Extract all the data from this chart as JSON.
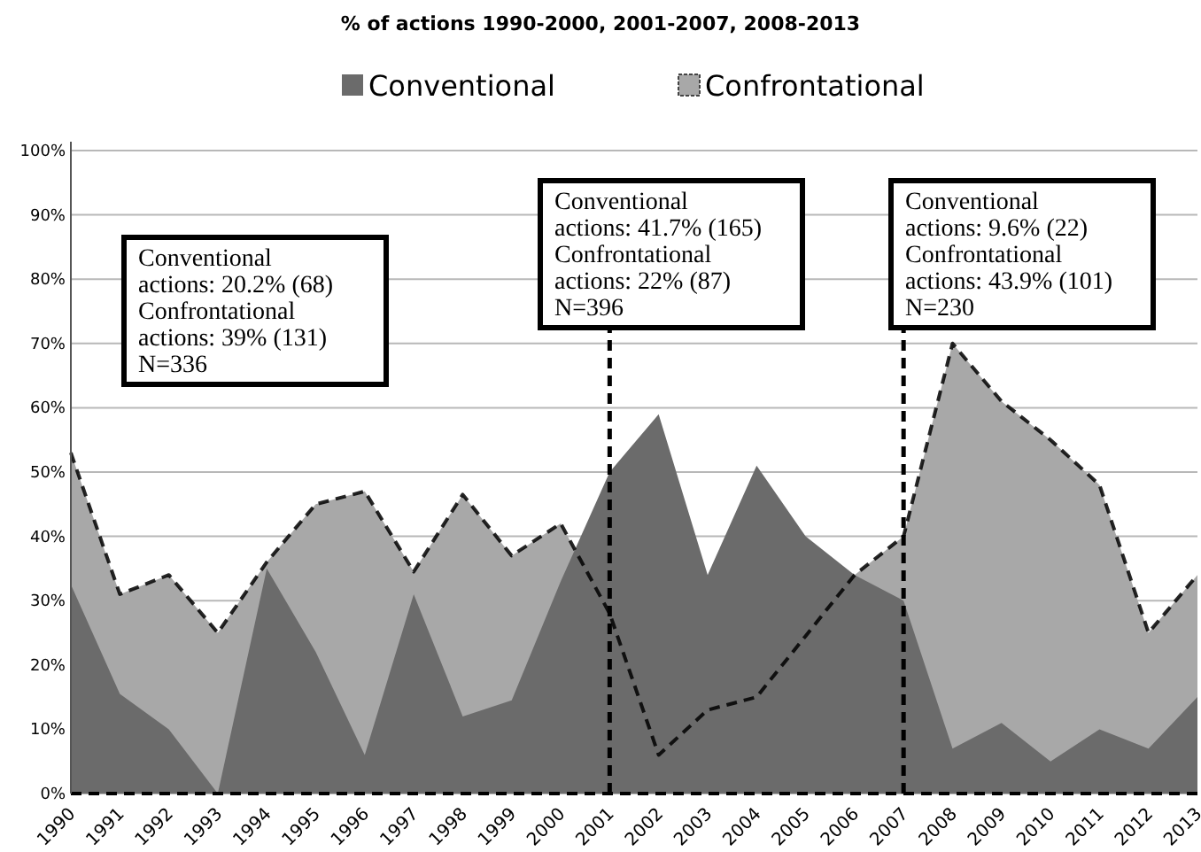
{
  "chart_data": {
    "type": "area",
    "title": "% of actions 1990-2000, 2001-2007, 2008-2013",
    "categories": [
      "1990",
      "1991",
      "1992",
      "1993",
      "1994",
      "1995",
      "1996",
      "1997",
      "1998",
      "1999",
      "2000",
      "2001",
      "2002",
      "2003",
      "2004",
      "2005",
      "2006",
      "2007",
      "2008",
      "2009",
      "2010",
      "2011",
      "2012",
      "2013"
    ],
    "series": [
      {
        "name": "Conventional",
        "color": "#6b6b6b",
        "line_style": "solid",
        "values": [
          32.5,
          15.5,
          10,
          0,
          35,
          22,
          6,
          31,
          12,
          14.5,
          33,
          50,
          59,
          34,
          51,
          40,
          34,
          30,
          7,
          11,
          5,
          10,
          7,
          15
        ]
      },
      {
        "name": "Confrontational",
        "color": "#a8a8a8",
        "line_style": "dashed",
        "values": [
          53,
          31,
          34,
          25,
          36,
          45,
          47,
          34.5,
          46.5,
          37,
          42,
          28,
          6,
          13,
          15,
          24.5,
          34,
          40,
          70,
          61,
          55,
          48,
          25,
          34
        ]
      }
    ],
    "ylim": [
      0,
      100
    ],
    "yticks": [
      {
        "value": 0,
        "label": "0%"
      },
      {
        "value": 10,
        "label": "10%"
      },
      {
        "value": 20,
        "label": "20%"
      },
      {
        "value": 30,
        "label": "30%"
      },
      {
        "value": 40,
        "label": "40%"
      },
      {
        "value": 50,
        "label": "50%"
      },
      {
        "value": 60,
        "label": "60%"
      },
      {
        "value": 70,
        "label": "70%"
      },
      {
        "value": 80,
        "label": "80%"
      },
      {
        "value": 90,
        "label": "90%"
      },
      {
        "value": 100,
        "label": "100%"
      }
    ],
    "grid": "y",
    "legend": "top",
    "ref_lines": [
      {
        "axis": "x",
        "value": "2001",
        "color": "#000000",
        "line_style": "dashed"
      },
      {
        "axis": "x",
        "value": "2007",
        "color": "#000000",
        "line_style": "dashed"
      }
    ],
    "annotations": [
      "Conventional\nactions: 20.2% (68)\nConfrontational\nactions: 39% (131)\nN=336",
      "Conventional\nactions: 41.7% (165)\nConfrontational\nactions: 22% (87)\nN=396",
      "Conventional\nactions: 9.6% (22)\nConfrontational\nactions: 43.9% (101)\nN=230"
    ]
  }
}
